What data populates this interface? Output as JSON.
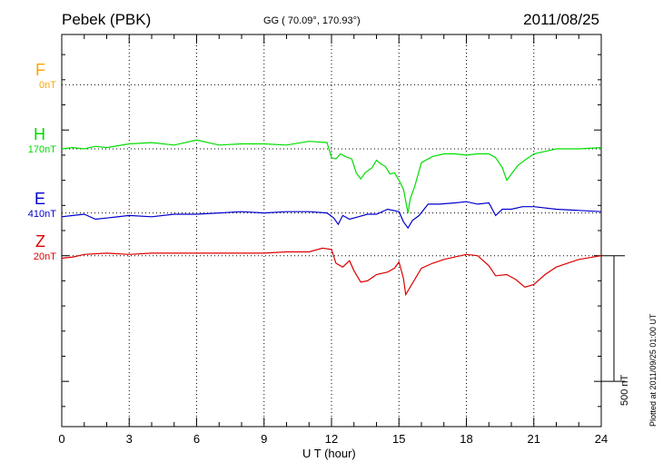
{
  "header": {
    "station": "Pebek (PBK)",
    "coords": "GG ( 70.09°, 170.93°)",
    "date": "2011/08/25"
  },
  "channels": [
    {
      "letter": "F",
      "baseline": "0nT",
      "color": "#ffa500"
    },
    {
      "letter": "H",
      "baseline": "170nT",
      "color": "#00dd00"
    },
    {
      "letter": "E",
      "baseline": "410nT",
      "color": "#0000cc"
    },
    {
      "letter": "Z",
      "baseline": "20nT",
      "color": "#dd0000"
    }
  ],
  "scale_bar": {
    "label": "500 nT"
  },
  "plotted_note": "Plotted at 2011/09/25 01:00 UT",
  "chart_data": {
    "type": "line",
    "xlabel": "U T (hour)",
    "xlim": [
      0,
      24
    ],
    "xticks": [
      0,
      3,
      6,
      9,
      12,
      15,
      18,
      21,
      24
    ],
    "grid": true,
    "series": [
      {
        "name": "H",
        "color": "#00dd00",
        "x": [
          0,
          0.5,
          1,
          1.5,
          2,
          3,
          4,
          5,
          6,
          7,
          8,
          9,
          10,
          11,
          11.8,
          12,
          12.2,
          12.4,
          12.6,
          12.9,
          13.1,
          13.3,
          13.5,
          13.8,
          14.0,
          14.2,
          14.4,
          14.6,
          14.8,
          15.0,
          15.2,
          15.4,
          15.5,
          15.7,
          16.0,
          16.5,
          17,
          17.5,
          18,
          18.5,
          19,
          19.3,
          19.6,
          19.8,
          20.0,
          20.3,
          20.6,
          21,
          21.5,
          22,
          23,
          24
        ],
        "y": [
          0,
          5,
          0,
          10,
          5,
          20,
          25,
          15,
          35,
          15,
          20,
          20,
          15,
          30,
          25,
          -35,
          -40,
          -20,
          -30,
          -40,
          -95,
          -120,
          -95,
          -75,
          -45,
          -60,
          -70,
          -100,
          -95,
          -125,
          -160,
          -255,
          -200,
          -150,
          -55,
          -30,
          -20,
          -20,
          -25,
          -20,
          -20,
          -35,
          -75,
          -125,
          -100,
          -65,
          -45,
          -20,
          -10,
          0,
          0,
          5
        ]
      },
      {
        "name": "E",
        "color": "#0000cc",
        "x": [
          0,
          0.5,
          1,
          1.5,
          2,
          3,
          4,
          5,
          6,
          7,
          8,
          9,
          10,
          11,
          11.8,
          12.1,
          12.3,
          12.5,
          12.8,
          13.2,
          13.6,
          14,
          14.5,
          15.0,
          15.2,
          15.4,
          15.6,
          15.9,
          16.3,
          16.8,
          17.5,
          18,
          18.5,
          19.0,
          19.3,
          19.6,
          20,
          20.5,
          21,
          22,
          23,
          24
        ],
        "y": [
          -15,
          -10,
          -5,
          -25,
          -20,
          -10,
          -15,
          -5,
          -5,
          0,
          5,
          0,
          5,
          5,
          0,
          -20,
          -45,
          -10,
          -25,
          -15,
          -5,
          -5,
          15,
          5,
          -35,
          -60,
          -30,
          -10,
          35,
          35,
          40,
          45,
          35,
          40,
          -10,
          15,
          15,
          25,
          25,
          15,
          10,
          5
        ]
      },
      {
        "name": "Z",
        "color": "#dd0000",
        "x": [
          0,
          0.5,
          1,
          2,
          3,
          4,
          5,
          6,
          7,
          8,
          9,
          10,
          11,
          11.6,
          12.0,
          12.2,
          12.5,
          12.8,
          13.0,
          13.3,
          13.6,
          14.0,
          14.5,
          14.8,
          15.0,
          15.2,
          15.3,
          15.6,
          16.0,
          16.5,
          17,
          17.5,
          18,
          18.5,
          19.0,
          19.3,
          19.8,
          20.2,
          20.6,
          21,
          21.5,
          22,
          23,
          24
        ],
        "y": [
          -10,
          -5,
          5,
          10,
          5,
          10,
          10,
          10,
          10,
          10,
          10,
          15,
          15,
          30,
          25,
          -30,
          -45,
          -20,
          -60,
          -105,
          -100,
          -75,
          -65,
          -50,
          -25,
          -90,
          -155,
          -110,
          -50,
          -30,
          -15,
          -5,
          5,
          0,
          -40,
          -80,
          -75,
          -95,
          -125,
          -115,
          -75,
          -45,
          -15,
          0
        ]
      }
    ],
    "ylim": [
      -680,
      880
    ],
    "offsets": {
      "F": 680,
      "H": 425,
      "E": 170,
      "Z": 0
    },
    "scale_bar_nT": 500
  }
}
